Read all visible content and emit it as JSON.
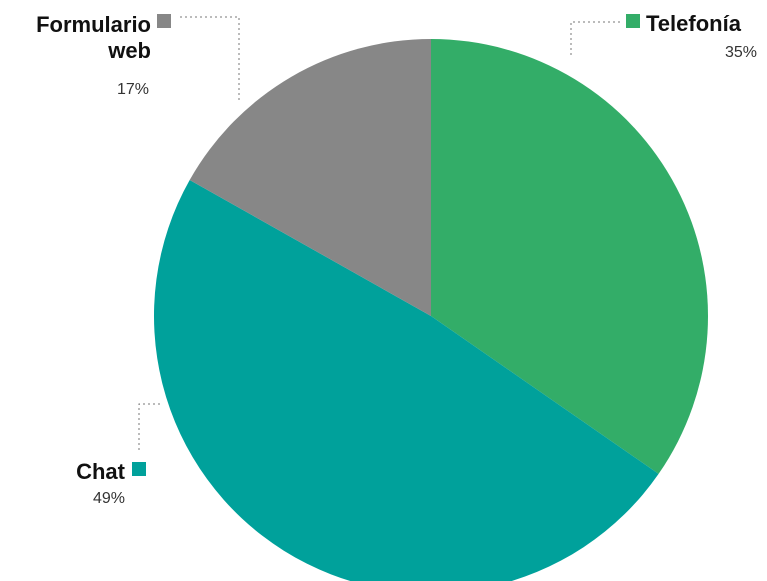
{
  "chart_data": {
    "type": "pie",
    "slices": [
      {
        "name": "Telefonía",
        "label_lines": [
          "Telefonía"
        ],
        "value_label": "35%",
        "value": 35,
        "color": "#33ad68"
      },
      {
        "name": "Chat",
        "label_lines": [
          "Chat"
        ],
        "value_label": "49%",
        "value": 49,
        "color": "#00a19b"
      },
      {
        "name": "Formulario web",
        "label_lines": [
          "Formulario",
          "web"
        ],
        "value_label": "17%",
        "value": 17,
        "color": "#878787"
      }
    ],
    "start_angle_deg": 0,
    "direction": "clockwise",
    "title": "",
    "legend_placement": "labels beside slices"
  }
}
